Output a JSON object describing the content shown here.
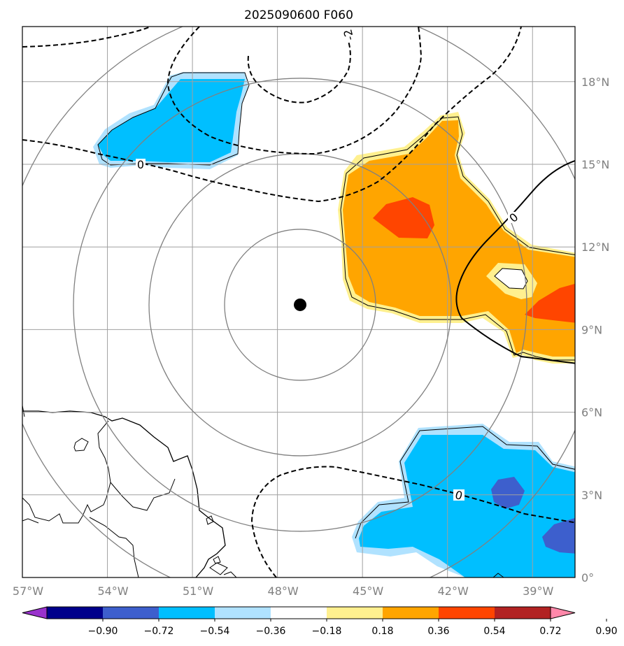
{
  "title": "2025090600 F060",
  "map": {
    "lon_range": [
      -57,
      -37.5
    ],
    "lat_range": [
      0,
      20
    ],
    "grid_lons": [
      -57,
      -54,
      -51,
      -48,
      -45,
      -42,
      -39
    ],
    "grid_lats": [
      0,
      3,
      6,
      9,
      12,
      15,
      18
    ],
    "lon_labels": [
      "57°W",
      "54°W",
      "51°W",
      "48°W",
      "45°W",
      "42°W",
      "39°W"
    ],
    "lat_labels": [
      "0°",
      "3°N",
      "6°N",
      "9°N",
      "12°N",
      "15°N",
      "18°N"
    ],
    "center_marker": {
      "lon": -47.2,
      "lat": 9.9
    },
    "range_rings_count": 4,
    "contour_labels": [
      "0",
      "0",
      "0",
      "-2"
    ]
  },
  "colorbar": {
    "ticks": [
      "−0.90",
      "−0.72",
      "−0.54",
      "−0.36",
      "−0.18",
      "0.18",
      "0.36",
      "0.54",
      "0.72",
      "0.90"
    ],
    "colors": [
      "#9932cc",
      "#00008b",
      "#3d5fcd",
      "#00bfff",
      "#b0e2ff",
      "#ffffff",
      "#fff08f",
      "#ffa500",
      "#ff4500",
      "#b22222",
      "#ff88aa"
    ]
  }
}
